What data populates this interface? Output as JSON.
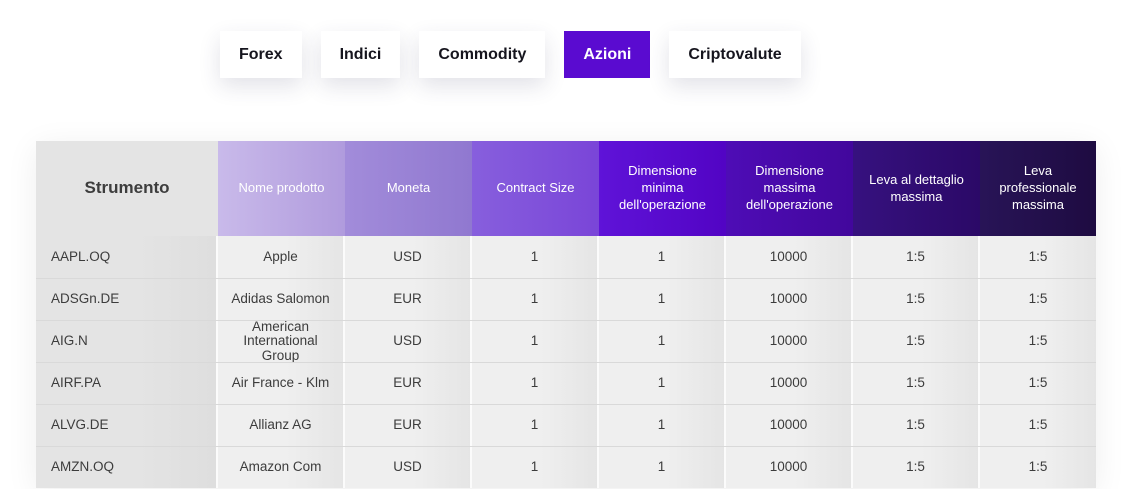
{
  "colors": {
    "page_bg": "#ffffff",
    "accent_purple": "#5a0bd0",
    "tab_active_bg": "#5a0bd0",
    "tab_active_text": "#ffffff",
    "tab_text": "#16151e",
    "header_column_colors": [
      "#e4e4e4",
      "#bfaee4",
      "#9a83d6",
      "#8052d8",
      "#5a0ccd",
      "#4809a9",
      "#300d74",
      "#23104d"
    ],
    "header_text_dark": "#3d3d3d",
    "header_text_light": "#ffffff",
    "body_cell_bg": "#efefef",
    "body_text": "#3c3c3c",
    "row_divider": "#d9d9d9"
  },
  "tabs": {
    "items": [
      {
        "label": "Forex",
        "active": false
      },
      {
        "label": "Indici",
        "active": false
      },
      {
        "label": "Commodity",
        "active": false
      },
      {
        "label": "Azioni",
        "active": true
      },
      {
        "label": "Criptovalute",
        "active": false
      }
    ]
  },
  "table": {
    "headers": [
      {
        "label": "Strumento"
      },
      {
        "label": "Nome prodotto"
      },
      {
        "label": "Moneta"
      },
      {
        "label": "Contract Size"
      },
      {
        "label": "Dimensione minima dell'operazione"
      },
      {
        "label": "Dimensione massima dell'operazione"
      },
      {
        "label": "Leva al dettaglio massima"
      },
      {
        "label": "Leva professionale massima"
      }
    ],
    "rows": [
      {
        "cells": [
          "AAPL.OQ",
          "Apple",
          "USD",
          "1",
          "1",
          "10000",
          "1:5",
          "1:5"
        ]
      },
      {
        "cells": [
          "ADSGn.DE",
          "Adidas Salomon",
          "EUR",
          "1",
          "1",
          "10000",
          "1:5",
          "1:5"
        ]
      },
      {
        "cells": [
          "AIG.N",
          "American International Group",
          "USD",
          "1",
          "1",
          "10000",
          "1:5",
          "1:5"
        ]
      },
      {
        "cells": [
          "AIRF.PA",
          "Air France - Klm",
          "EUR",
          "1",
          "1",
          "10000",
          "1:5",
          "1:5"
        ]
      },
      {
        "cells": [
          "ALVG.DE",
          "Allianz AG",
          "EUR",
          "1",
          "1",
          "10000",
          "1:5",
          "1:5"
        ]
      },
      {
        "cells": [
          "AMZN.OQ",
          "Amazon Com",
          "USD",
          "1",
          "1",
          "10000",
          "1:5",
          "1:5"
        ]
      }
    ]
  }
}
